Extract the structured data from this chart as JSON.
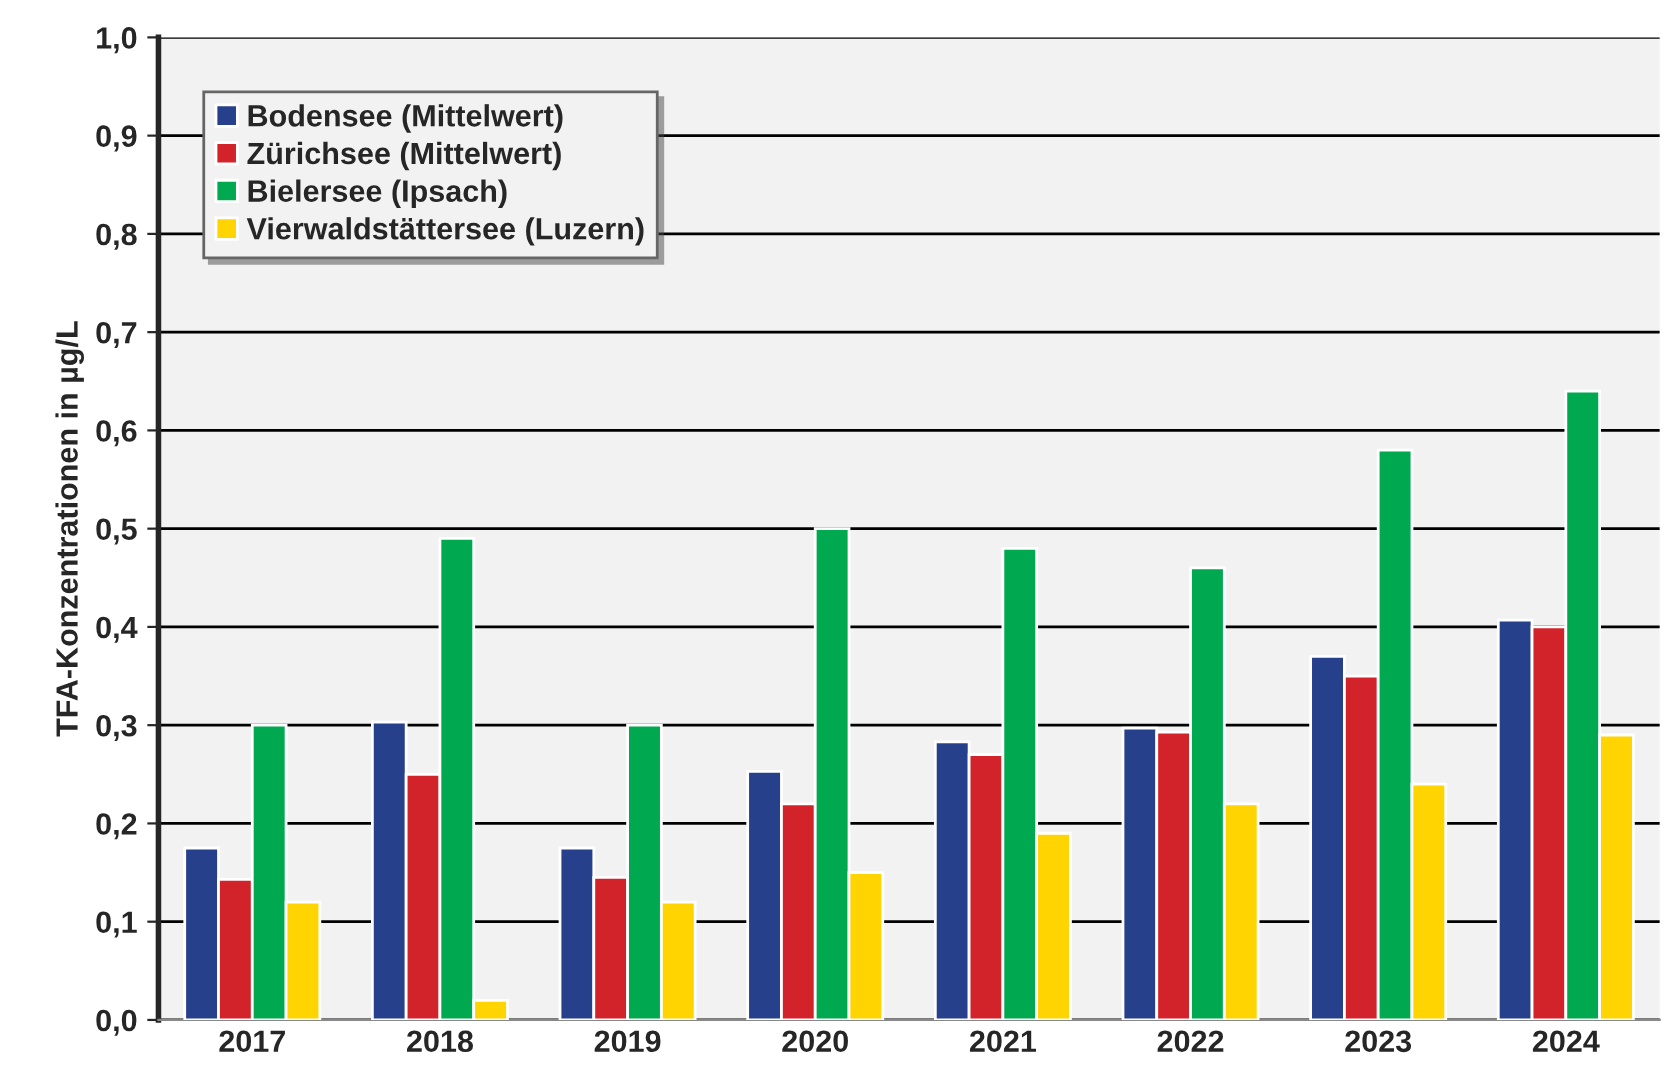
{
  "chart_data": {
    "type": "bar",
    "ylabel": "TFA-Konzentrationen in µg/L",
    "categories": [
      "2017",
      "2018",
      "2019",
      "2020",
      "2021",
      "2022",
      "2023",
      "2024"
    ],
    "series": [
      {
        "name": "Bodensee (Mittelwert)",
        "color": "#27408b",
        "values": [
          0.175,
          0.303,
          0.175,
          0.253,
          0.283,
          0.297,
          0.37,
          0.407
        ]
      },
      {
        "name": "Zürichsee (Mittelwert)",
        "color": "#d2232a",
        "values": [
          0.143,
          0.25,
          0.145,
          0.22,
          0.27,
          0.293,
          0.35,
          0.4
        ]
      },
      {
        "name": "Bielersee (Ipsach)",
        "color": "#00a94f",
        "values": [
          0.3,
          0.49,
          0.3,
          0.5,
          0.48,
          0.46,
          0.58,
          0.64
        ]
      },
      {
        "name": "Vierwaldstättersee (Luzern)",
        "color": "#ffd400",
        "values": [
          0.12,
          0.02,
          0.12,
          0.15,
          0.19,
          0.22,
          0.24,
          0.29
        ]
      }
    ],
    "ylim": [
      0,
      1.0
    ],
    "yticks": [
      {
        "value": 0,
        "label": "0,0"
      },
      {
        "value": 0.1,
        "label": "0,1"
      },
      {
        "value": 0.2,
        "label": "0,2"
      },
      {
        "value": 0.3,
        "label": "0,3"
      },
      {
        "value": 0.4,
        "label": "0,4"
      },
      {
        "value": 0.5,
        "label": "0,5"
      },
      {
        "value": 0.6,
        "label": "0,6"
      },
      {
        "value": 0.7,
        "label": "0,7"
      },
      {
        "value": 0.8,
        "label": "0,8"
      },
      {
        "value": 0.9,
        "label": "0,9"
      },
      {
        "value": 1.0,
        "label": "1,0"
      }
    ],
    "grid": "y",
    "legend": "top left"
  }
}
